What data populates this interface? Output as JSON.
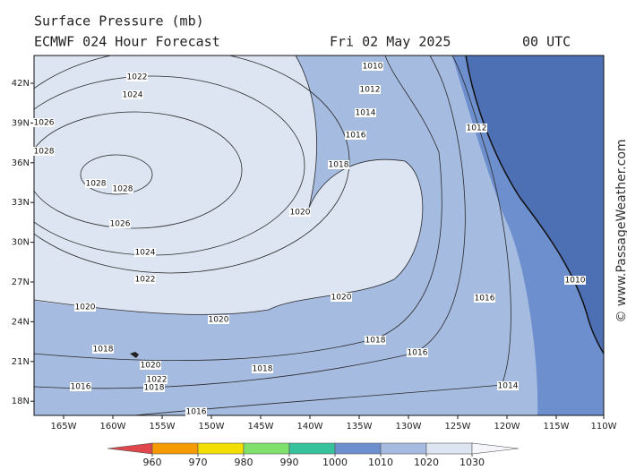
{
  "header": {
    "title": "Surface Pressure (mb)",
    "model": "ECMWF 024 Hour Forecast",
    "date": "Fri 02 May 2025",
    "time": "00 UTC"
  },
  "axes": {
    "lon_labels": [
      "165W",
      "160W",
      "155W",
      "150W",
      "145W",
      "140W",
      "135W",
      "130W",
      "125W",
      "120W",
      "115W",
      "110W"
    ],
    "lat_labels": [
      "42N",
      "39N",
      "36N",
      "33N",
      "30N",
      "27N",
      "24N",
      "21N",
      "18N"
    ]
  },
  "isobar_labels": [
    "1010",
    "1012",
    "1014",
    "1016",
    "1018",
    "1020",
    "1022",
    "1024",
    "1026",
    "1028",
    "1028",
    "1028",
    "1026",
    "1024",
    "1022",
    "1020",
    "1020",
    "1020",
    "1018",
    "1020",
    "1022",
    "1018",
    "1016",
    "1018",
    "1018",
    "1016",
    "1016",
    "1014",
    "1016",
    "1012",
    "1010"
  ],
  "colorbar": {
    "ticks": [
      960,
      970,
      980,
      990,
      1000,
      1010,
      1020,
      1030
    ],
    "colors": [
      "#e0474c",
      "#f59a00",
      "#f2de00",
      "#7fe06c",
      "#36c39c",
      "#6d8fcd",
      "#a5bbe0",
      "#dde5f3",
      "#f4f6fb"
    ]
  },
  "watermark": "© www.PassageWeather.com"
}
